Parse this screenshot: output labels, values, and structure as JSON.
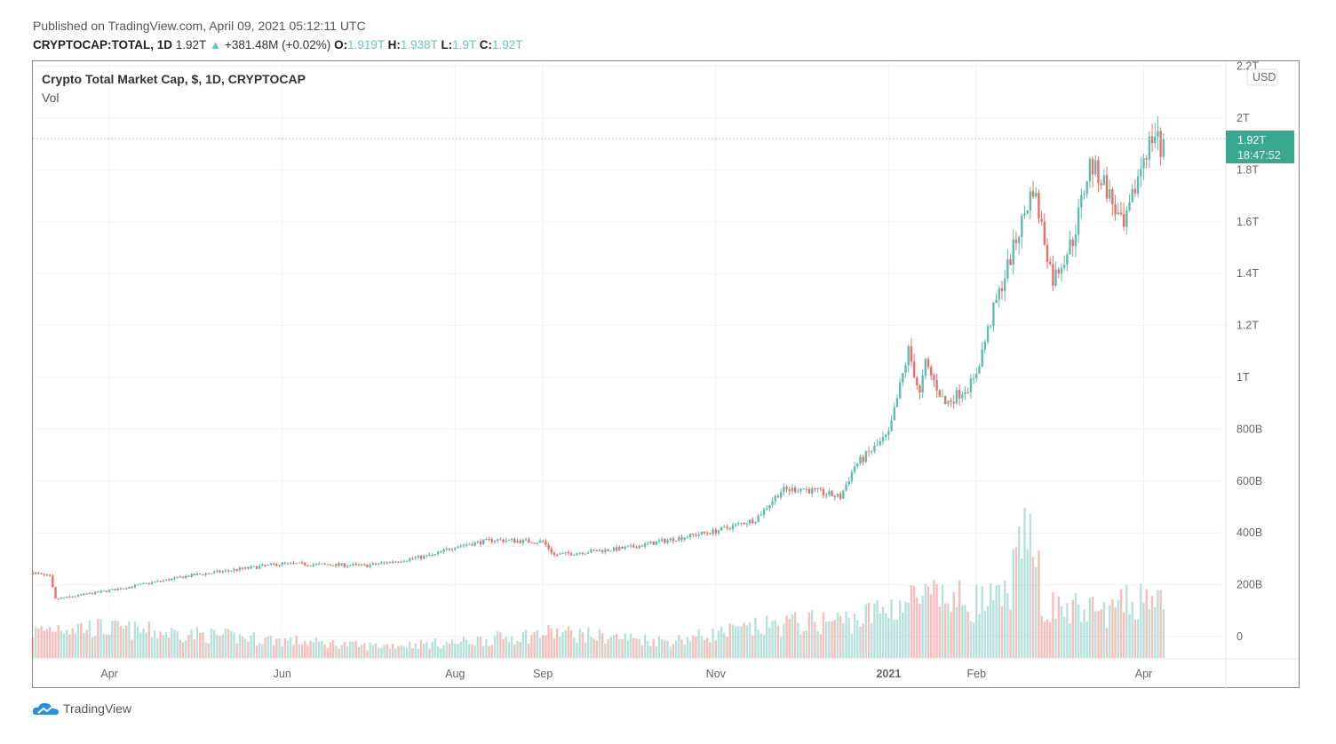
{
  "header": {
    "published": "Published on TradingView.com, April 09, 2021 05:12:11 UTC",
    "symbol": "CRYPTOCAP:TOTAL, 1D",
    "last": "1.92T",
    "change": "+381.48M (+0.02%)",
    "o_label": "O:",
    "o": "1.919T",
    "h_label": "H:",
    "h": "1.938T",
    "l_label": "L:",
    "l": "1.9T",
    "c_label": "C:",
    "c": "1.92T"
  },
  "chart_data": {
    "type": "candlestick",
    "title": "Crypto Total Market Cap, $, 1D, CRYPTOCAP",
    "indicator": "Vol",
    "currency": "USD",
    "y_unit": "USD billions",
    "ylim": [
      0,
      2200
    ],
    "y_ticks": [
      {
        "v": 0,
        "label": "0"
      },
      {
        "v": 200,
        "label": "200B"
      },
      {
        "v": 400,
        "label": "400B"
      },
      {
        "v": 600,
        "label": "600B"
      },
      {
        "v": 800,
        "label": "800B"
      },
      {
        "v": 1000,
        "label": "1T"
      },
      {
        "v": 1200,
        "label": "1.2T"
      },
      {
        "v": 1400,
        "label": "1.4T"
      },
      {
        "v": 1600,
        "label": "1.6T"
      },
      {
        "v": 1800,
        "label": "1.8T"
      },
      {
        "v": 2000,
        "label": "2T"
      },
      {
        "v": 2200,
        "label": "2.2T"
      }
    ],
    "x_ticks": [
      {
        "date": "2020-04-01",
        "label": "Apr"
      },
      {
        "date": "2020-06-01",
        "label": "Jun"
      },
      {
        "date": "2020-08-01",
        "label": "Aug"
      },
      {
        "date": "2020-09-01",
        "label": "Sep"
      },
      {
        "date": "2020-11-01",
        "label": "Nov"
      },
      {
        "date": "2021-01-01",
        "label": "2021"
      },
      {
        "date": "2021-02-01",
        "label": "Feb"
      },
      {
        "date": "2021-04-01",
        "label": "Apr"
      }
    ],
    "x_start": "2020-03-05",
    "close_points": [
      [
        "2020-03-05",
        247
      ],
      [
        "2020-03-11",
        230
      ],
      [
        "2020-03-13",
        144
      ],
      [
        "2020-04-01",
        178
      ],
      [
        "2020-04-30",
        236
      ],
      [
        "2020-06-01",
        281
      ],
      [
        "2020-07-01",
        274
      ],
      [
        "2020-07-25",
        315
      ],
      [
        "2020-08-01",
        349
      ],
      [
        "2020-08-15",
        373
      ],
      [
        "2020-09-01",
        366
      ],
      [
        "2020-09-05",
        315
      ],
      [
        "2020-10-01",
        342
      ],
      [
        "2020-10-20",
        383
      ],
      [
        "2020-11-01",
        407
      ],
      [
        "2020-11-15",
        452
      ],
      [
        "2020-11-24",
        562
      ],
      [
        "2020-12-01",
        572
      ],
      [
        "2020-12-15",
        538
      ],
      [
        "2020-12-20",
        658
      ],
      [
        "2021-01-01",
        777
      ],
      [
        "2021-01-08",
        1103
      ],
      [
        "2021-01-12",
        932
      ],
      [
        "2021-01-14",
        1051
      ],
      [
        "2021-01-21",
        897
      ],
      [
        "2021-01-31",
        983
      ],
      [
        "2021-02-07",
        1257
      ],
      [
        "2021-02-13",
        1462
      ],
      [
        "2021-02-21",
        1736
      ],
      [
        "2021-02-28",
        1377
      ],
      [
        "2021-03-07",
        1531
      ],
      [
        "2021-03-13",
        1822
      ],
      [
        "2021-03-18",
        1753
      ],
      [
        "2021-03-25",
        1565
      ],
      [
        "2021-04-01",
        1856
      ],
      [
        "2021-04-04",
        1925
      ],
      [
        "2021-04-06",
        1950
      ],
      [
        "2021-04-07",
        1822
      ],
      [
        "2021-04-08",
        1920
      ]
    ],
    "volume_relative": [
      [
        "2020-03-05",
        30
      ],
      [
        "2020-03-15",
        38
      ],
      [
        "2020-05-01",
        28
      ],
      [
        "2020-07-01",
        14
      ],
      [
        "2020-08-01",
        18
      ],
      [
        "2020-09-05",
        30
      ],
      [
        "2020-10-15",
        20
      ],
      [
        "2020-11-25",
        40
      ],
      [
        "2020-12-20",
        45
      ],
      [
        "2021-01-10",
        70
      ],
      [
        "2021-02-10",
        65
      ],
      [
        "2021-02-22",
        165
      ],
      [
        "2021-02-24",
        60
      ],
      [
        "2021-03-20",
        55
      ],
      [
        "2021-04-06",
        80
      ],
      [
        "2021-04-08",
        50
      ]
    ],
    "last_price_label": "1.92T",
    "countdown": "18:47:52",
    "up_color": "#5fbcae",
    "down_color": "#ec6e6b",
    "last_bg": "#3aa88f"
  },
  "footer": {
    "brand": "TradingView"
  }
}
